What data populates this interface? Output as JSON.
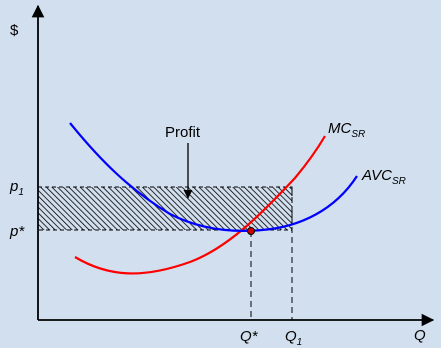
{
  "axes": {
    "y_label": "$",
    "x_label": "Q"
  },
  "annotations": {
    "profit": "Profit"
  },
  "curves": {
    "mc": {
      "main": "MC",
      "sub": "SR",
      "color": "#ff0000"
    },
    "avc": {
      "main": "AVC",
      "sub": "SR",
      "color": "#0000ff"
    }
  },
  "price_labels": {
    "p1_main": "p",
    "p1_sub": "1",
    "pstar": "p*"
  },
  "quantity_labels": {
    "qstar": "Q*",
    "q1_main": "Q",
    "q1_sub": "1"
  },
  "colors": {
    "background": "#d2dfee",
    "axis": "#000000",
    "equilibrium_point": "#cc0000"
  }
}
